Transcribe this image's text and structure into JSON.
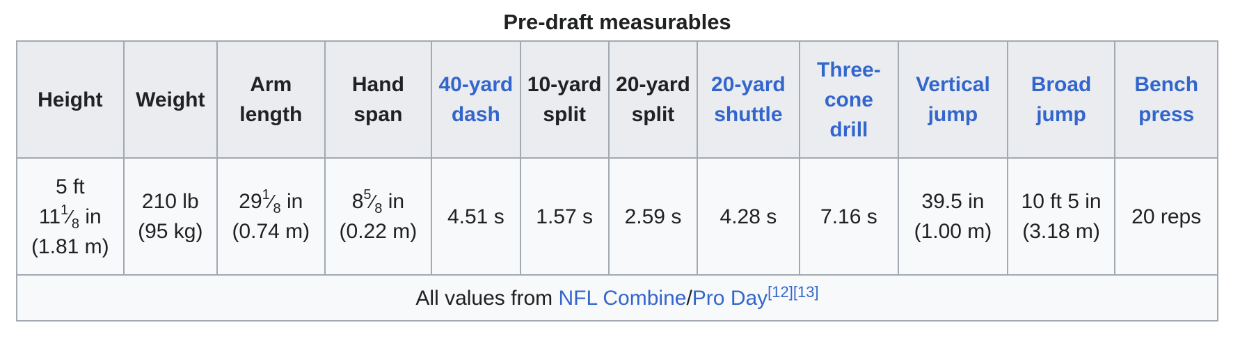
{
  "caption": "Pre-draft measurables",
  "headers": [
    {
      "label": "Height",
      "link": false
    },
    {
      "label": "Weight",
      "link": false
    },
    {
      "label": "Arm length",
      "link": false
    },
    {
      "label": "Hand span",
      "link": false
    },
    {
      "label": "40-yard dash",
      "link": true
    },
    {
      "label": "10-yard split",
      "link": false
    },
    {
      "label": "20-yard split",
      "link": false
    },
    {
      "label": "20-yard shuttle",
      "link": true
    },
    {
      "label": "Three-cone drill",
      "link": true
    },
    {
      "label": "Vertical jump",
      "link": true
    },
    {
      "label": "Broad jump",
      "link": true
    },
    {
      "label": "Bench press",
      "link": true
    }
  ],
  "values": {
    "height": {
      "pre": "5 ft",
      "whole": "11",
      "num": "1",
      "den": "8",
      "unit": "in",
      "metric": "(1.81 m)"
    },
    "weight": {
      "imperial": "210 lb",
      "metric": "(95 kg)"
    },
    "arm_length": {
      "whole": "29",
      "num": "1",
      "den": "8",
      "unit": "in",
      "metric": "(0.74 m)"
    },
    "hand_span": {
      "whole": "8",
      "num": "5",
      "den": "8",
      "unit": "in",
      "metric": "(0.22 m)"
    },
    "forty": "4.51 s",
    "ten_split": "1.57 s",
    "twenty_split": "2.59 s",
    "shuttle": "4.28 s",
    "three_cone": "7.16 s",
    "vertical": {
      "imperial": "39.5 in",
      "metric": "(1.00 m)"
    },
    "broad": {
      "imperial": "10 ft 5 in",
      "metric": "(3.18 m)"
    },
    "bench": "20 reps"
  },
  "footer": {
    "prefix": "All values from ",
    "link1": "NFL Combine",
    "sep": "/",
    "link2": "Pro Day",
    "ref1": "[12]",
    "ref2": "[13]"
  }
}
